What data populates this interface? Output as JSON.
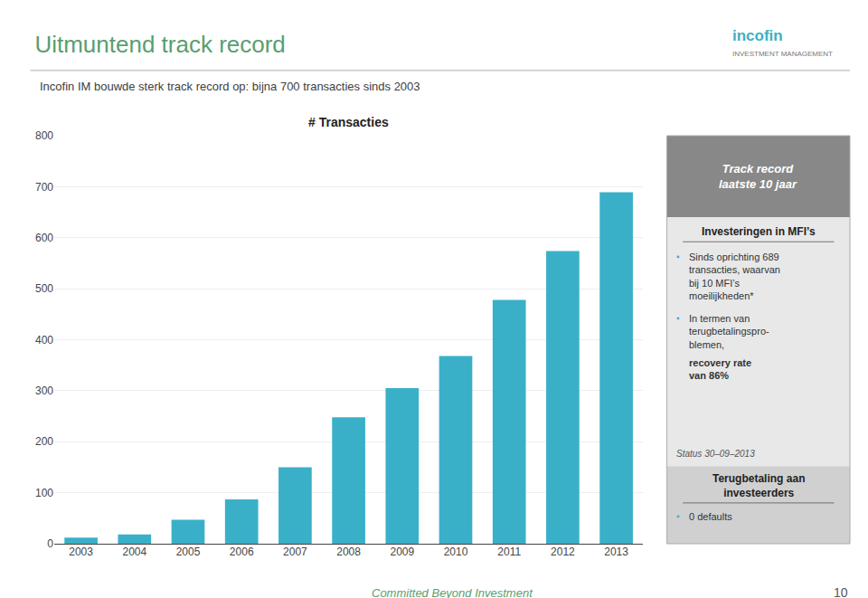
{
  "title": "Uitmuntend track record",
  "subtitle": "Incofin IM bouwde sterk track record op: bijna 700 transacties sinds 2003",
  "annotations": [
    "Track record\nlaatste 10 jaar",
    "Investeringen in MFI’s",
    "▪",
    "Sinds oprichting 689\ntransacties, waarvan\nbij 10 MFI’s\nmoeilijkheden*",
    "▪",
    "In termen van\nterugbetalingspro-\nblemen, ",
    "recovery rate\nvan 86%",
    "Status 30–09–2013",
    "Terugbetaling aan\ninvesteerders",
    "▪",
    "0 defaults",
    "Committed Beyond Investment",
    "10",
    "incofin",
    "INVESTMENT MANAGEMENT"
  ],
  "chart_data": {
    "type": "bar",
    "title": "# Transacties",
    "categories": [
      "2003",
      "2004",
      "2005",
      "2006",
      "2007",
      "2008",
      "2009",
      "2010",
      "2011",
      "2012",
      "2013"
    ],
    "values": [
      12,
      18,
      47,
      87,
      150,
      248,
      305,
      368,
      478,
      574,
      689
    ],
    "color": "#3ab0c8",
    "ylim": [
      0,
      800
    ],
    "yticks": [
      0,
      100,
      200,
      300,
      400,
      500,
      600,
      700,
      800
    ],
    "grid": true
  }
}
